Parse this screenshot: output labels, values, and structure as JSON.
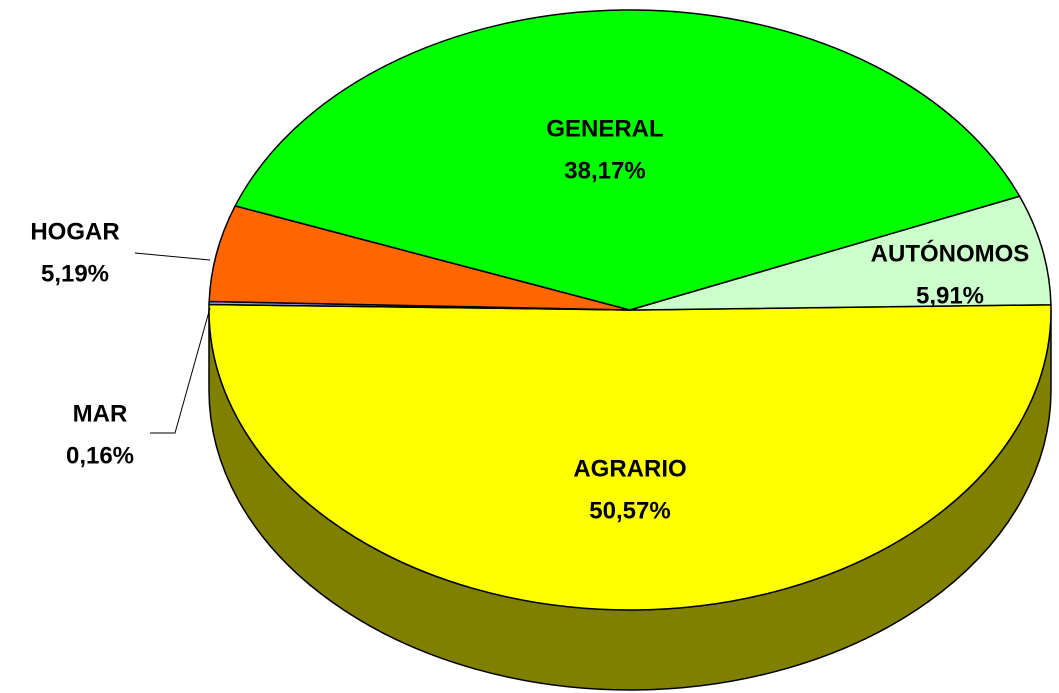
{
  "chart_data": {
    "type": "pie",
    "categories": [
      "AGRARIO",
      "MAR",
      "HOGAR",
      "GENERAL",
      "AUTÓNOMOS"
    ],
    "values": [
      50.57,
      0.16,
      5.19,
      38.17,
      5.91
    ],
    "value_labels": [
      "50,57%",
      "0,16%",
      "5,19%",
      "38,17%",
      "5,91%"
    ],
    "colors": [
      "#ffff00",
      "#9999ff",
      "#ff6600",
      "#00ff00",
      "#ccffcc"
    ],
    "three_d": true
  }
}
